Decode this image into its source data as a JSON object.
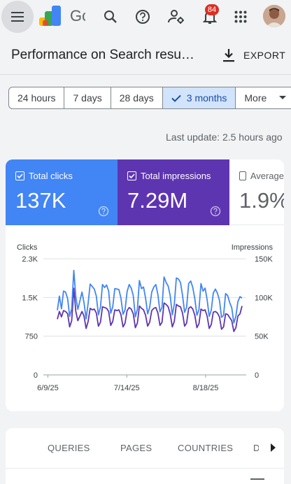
{
  "appbar": {
    "product_text": "Gc",
    "notifications_count": "84",
    "icons": [
      "menu-icon",
      "search-console-logo",
      "search-icon",
      "help-icon",
      "manage-account-icon",
      "notifications-icon",
      "apps-grid-icon",
      "avatar"
    ]
  },
  "header": {
    "title": "Performance on Search resu…",
    "export_label": "EXPORT"
  },
  "date_filters": {
    "options": [
      "24 hours",
      "7 days",
      "28 days",
      "3 months",
      "More"
    ],
    "selected": "3 months"
  },
  "last_update": "Last update: 2.5 hours ago",
  "metrics": {
    "total_clicks": {
      "label": "Total clicks",
      "value": "137K",
      "checked": true,
      "color": "#4285f4"
    },
    "total_impressions": {
      "label": "Total impressions",
      "value": "7.29M",
      "checked": true,
      "color": "#5e35b1"
    },
    "average_ctr": {
      "label": "Average",
      "value": "1.9%",
      "checked": false
    }
  },
  "chart": {
    "left_axis_title": "Clicks",
    "right_axis_title": "Impressions",
    "left_ticks": [
      "2.3K",
      "1.5K",
      "750",
      "0"
    ],
    "right_ticks": [
      "150K",
      "100K",
      "50K",
      "0"
    ],
    "x_ticks": [
      "6/9/25",
      "7/14/25",
      "8/18/25"
    ]
  },
  "chart_data": {
    "type": "line",
    "x_start": "2025-06-07",
    "x_end": "2025-09-05",
    "x_ticks": [
      "6/9/25",
      "7/14/25",
      "8/18/25"
    ],
    "ylim_left": [
      0,
      2300
    ],
    "ylim_right": [
      0,
      150000
    ],
    "series": [
      {
        "name": "Clicks",
        "axis": "left",
        "color": "#4285f4",
        "values": [
          1280,
          1560,
          1310,
          1660,
          1640,
          1510,
          1160,
          1310,
          2070,
          1540,
          1300,
          1470,
          1640,
          1430,
          1110,
          1420,
          1800,
          1750,
          1700,
          1560,
          1190,
          1340,
          1790,
          1730,
          1780,
          1660,
          1220,
          1350,
          1710,
          1700,
          1690,
          1520,
          1200,
          1290,
          1650,
          1790,
          1720,
          1570,
          1150,
          1300,
          1870,
          1710,
          1740,
          1520,
          1210,
          1340,
          1640,
          1740,
          1790,
          1590,
          1250,
          1340,
          1940,
          1830,
          1760,
          1570,
          1190,
          1400,
          1920,
          1900,
          1830,
          1580,
          1240,
          1340,
          1810,
          1860,
          1730,
          1510,
          1180,
          1290,
          1810,
          1660,
          1720,
          1490,
          1160,
          1280,
          1620,
          1700,
          1620,
          1480,
          1140,
          1180,
          1610,
          1570,
          1430,
          1330,
          1030,
          1160,
          1450,
          1550,
          1520
        ]
      },
      {
        "name": "Impressions",
        "axis": "right",
        "color": "#5e35b1",
        "values": [
          72000,
          82000,
          75000,
          83000,
          82000,
          79000,
          62000,
          70000,
          112000,
          82000,
          70000,
          76000,
          82000,
          76000,
          60000,
          69000,
          86000,
          84000,
          85000,
          80000,
          63000,
          68000,
          88000,
          87000,
          86000,
          82000,
          64000,
          69000,
          84000,
          83000,
          84000,
          78000,
          62000,
          67000,
          83000,
          87000,
          85000,
          79000,
          61000,
          67000,
          89000,
          86000,
          84000,
          77000,
          63000,
          68000,
          83000,
          86000,
          87000,
          80000,
          64000,
          68000,
          93000,
          91000,
          88000,
          79000,
          62000,
          69000,
          91000,
          89000,
          88000,
          80000,
          63000,
          67000,
          86000,
          88000,
          85000,
          77000,
          61000,
          66000,
          85000,
          83000,
          84000,
          76000,
          60000,
          65000,
          81000,
          82000,
          80000,
          75000,
          59000,
          62000,
          79000,
          78000,
          74000,
          70000,
          56000,
          61000,
          76000,
          79000,
          89000
        ]
      }
    ]
  },
  "table_tabs": [
    "QUERIES",
    "PAGES",
    "COUNTRIES",
    "D"
  ]
}
